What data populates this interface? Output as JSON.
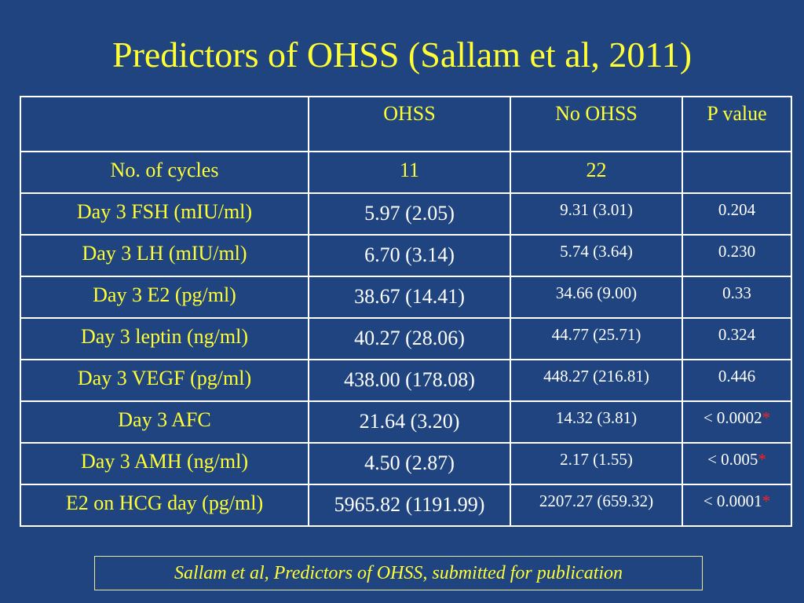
{
  "slide": {
    "title": "Predictors of OHSS (Sallam et al, 2011)",
    "footnote": "Sallam et al, Predictors of OHSS, submitted for publication"
  },
  "table": {
    "headers": [
      "",
      "OHSS",
      "No OHSS",
      "P value"
    ],
    "rows": [
      {
        "label": "No. of cycles",
        "ohss": "11",
        "no_ohss": "22",
        "p_value": "",
        "sig": ""
      },
      {
        "label": "Day 3 FSH (mIU/ml)",
        "ohss": "5.97 (2.05)",
        "no_ohss": "9.31 (3.01)",
        "p_value": "0.204",
        "sig": ""
      },
      {
        "label": "Day 3 LH (mIU/ml)",
        "ohss": "6.70 (3.14)",
        "no_ohss": "5.74 (3.64)",
        "p_value": "0.230",
        "sig": ""
      },
      {
        "label": "Day 3 E2 (pg/ml)",
        "ohss": "38.67 (14.41)",
        "no_ohss": "34.66 (9.00)",
        "p_value": "0.33",
        "sig": ""
      },
      {
        "label": "Day 3 leptin (ng/ml)",
        "ohss": "40.27 (28.06)",
        "no_ohss": "44.77 (25.71)",
        "p_value": "0.324",
        "sig": ""
      },
      {
        "label": "Day 3 VEGF (pg/ml)",
        "ohss": "438.00 (178.08)",
        "no_ohss": "448.27 (216.81)",
        "p_value": "0.446",
        "sig": ""
      },
      {
        "label": "Day 3 AFC",
        "ohss": "21.64 (3.20)",
        "no_ohss": "14.32 (3.81)",
        "p_value": "< 0.0002",
        "sig": "*"
      },
      {
        "label": "Day 3 AMH (ng/ml)",
        "ohss": "4.50 (2.87)",
        "no_ohss": "2.17 (1.55)",
        "p_value": "< 0.005",
        "sig": "*"
      },
      {
        "label": "E2 on HCG day (pg/ml)",
        "ohss": "5965.82 (1191.99)",
        "no_ohss": "2207.27 (659.32)",
        "p_value": "< 0.0001",
        "sig": "*"
      }
    ]
  },
  "colors": {
    "background": "#1f4480",
    "title": "#ffff33",
    "value_text": "#ffffff",
    "significance_mark": "#ff2020"
  }
}
